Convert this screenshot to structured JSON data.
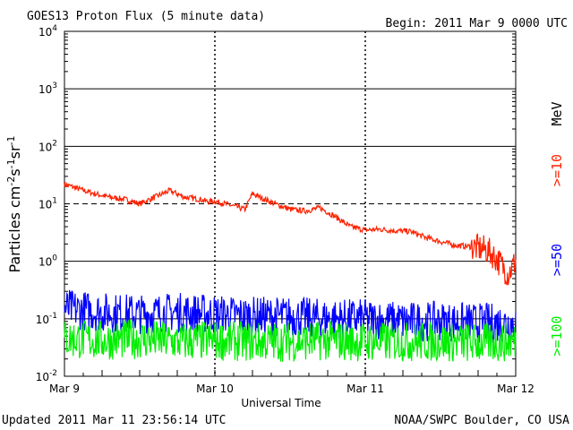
{
  "header": {
    "title": "GOES13 Proton Flux (5 minute data)",
    "begin": "Begin: 2011 Mar 9 0000 UTC"
  },
  "footer": {
    "updated": "Updated 2011 Mar 11 23:56:14 UTC",
    "credit": "NOAA/SWPC Boulder, CO USA"
  },
  "colors": {
    "p10": "#ff2200",
    "p50": "#0000ff",
    "p100": "#00ee00",
    "axis": "#000000"
  },
  "chart_data": {
    "type": "line",
    "title": "GOES13 Proton Flux (5 minute data)",
    "xlabel": "Universal Time",
    "ylabel": "Particles cm-2s-1sr-1",
    "yscale": "log",
    "ylim": [
      0.01,
      10000
    ],
    "xlim_days": [
      0,
      3
    ],
    "x_ticks": [
      "Mar 9",
      "Mar 10",
      "Mar 11",
      "Mar 12"
    ],
    "y_ticks": [
      {
        "base": "10",
        "exp": "4",
        "value": 10000
      },
      {
        "base": "10",
        "exp": "3",
        "value": 1000
      },
      {
        "base": "10",
        "exp": "2",
        "value": 100
      },
      {
        "base": "10",
        "exp": "1",
        "value": 10
      },
      {
        "base": "10",
        "exp": "0",
        "value": 1
      },
      {
        "base": "10",
        "exp": "-1",
        "value": 0.1
      },
      {
        "base": "10",
        "exp": "-2",
        "value": 0.01
      }
    ],
    "units_label": "MeV",
    "threshold_line": 10,
    "series": [
      {
        "name": ">=10",
        "color": "#ff2200",
        "x": [
          0.0,
          0.1,
          0.2,
          0.3,
          0.4,
          0.5,
          0.6,
          0.7,
          0.8,
          0.9,
          0.95,
          1.0,
          1.1,
          1.2,
          1.25,
          1.3,
          1.4,
          1.5,
          1.6,
          1.7,
          1.8,
          1.9,
          2.0,
          2.1,
          2.2,
          2.3,
          2.4,
          2.5,
          2.6,
          2.7,
          2.8,
          2.85,
          2.9,
          2.95,
          3.0
        ],
        "values": [
          22,
          18,
          15,
          13,
          12,
          10,
          13,
          17,
          13,
          12,
          11,
          11,
          9.5,
          8,
          15,
          13,
          10,
          8,
          7.5,
          8.5,
          6,
          4,
          3.5,
          3.6,
          3.4,
          3.3,
          2.6,
          2.2,
          1.9,
          1.8,
          1.6,
          1.3,
          0.9,
          0.6,
          1.0
        ]
      },
      {
        "name": ">=50",
        "color": "#0000ff",
        "x": [
          0.0,
          0.25,
          0.5,
          0.75,
          1.0,
          1.25,
          1.5,
          1.75,
          2.0,
          2.25,
          2.5,
          2.75,
          3.0
        ],
        "values": [
          0.15,
          0.13,
          0.12,
          0.13,
          0.12,
          0.11,
          0.11,
          0.1,
          0.1,
          0.09,
          0.09,
          0.085,
          0.085
        ]
      },
      {
        "name": ">=100",
        "color": "#00ee00",
        "x": [
          0.0,
          0.25,
          0.5,
          0.75,
          1.0,
          1.25,
          1.5,
          1.75,
          2.0,
          2.25,
          2.5,
          2.75,
          3.0
        ],
        "values": [
          0.045,
          0.042,
          0.045,
          0.04,
          0.042,
          0.04,
          0.04,
          0.042,
          0.04,
          0.04,
          0.04,
          0.038,
          0.04
        ]
      }
    ]
  }
}
